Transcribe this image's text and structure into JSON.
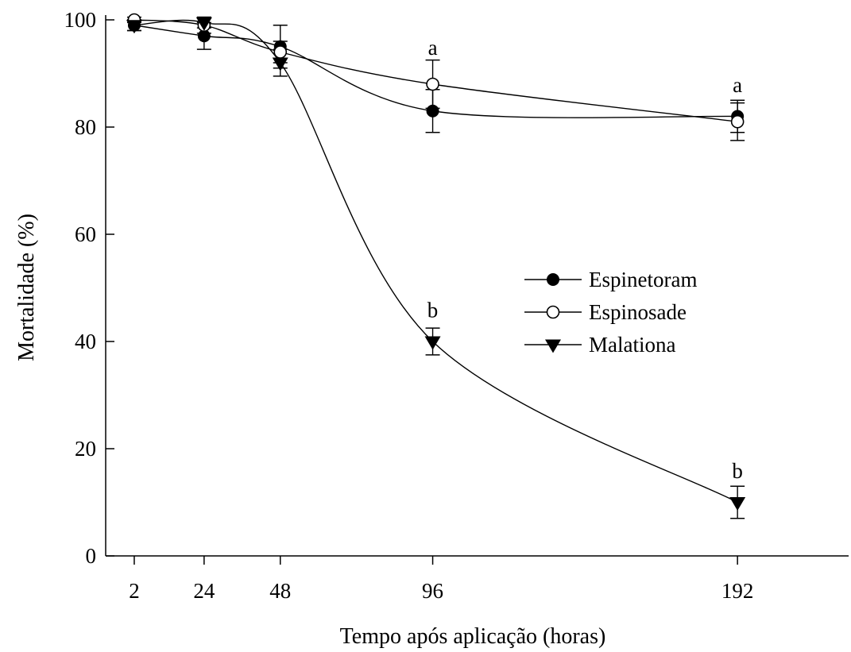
{
  "chart_data": {
    "type": "line",
    "title": "",
    "xlabel": "Tempo após aplicação (horas)",
    "ylabel": "Mortalidade (%)",
    "x": [
      2,
      24,
      48,
      96,
      192
    ],
    "x_ticks": [
      "2",
      "24",
      "48",
      "96",
      "192"
    ],
    "xlim": [
      -7,
      227
    ],
    "ylim": [
      0,
      100
    ],
    "y_ticks": [
      0,
      20,
      40,
      60,
      80,
      100
    ],
    "grid": false,
    "legend_position": "center-right",
    "series": [
      {
        "name": "Espinetoram",
        "marker": "filled-circle",
        "values": [
          99,
          97,
          95,
          83,
          82
        ],
        "errors": [
          1,
          2.5,
          4,
          4,
          3
        ]
      },
      {
        "name": "Espinosade",
        "marker": "open-circle",
        "values": [
          100,
          99,
          94,
          88,
          81
        ],
        "errors": [
          0.5,
          1.5,
          2,
          4.5,
          3.5
        ]
      },
      {
        "name": "Malationa",
        "marker": "filled-triangle-down",
        "values": [
          99,
          99.5,
          92,
          40,
          10
        ],
        "errors": [
          1,
          1,
          2.5,
          2.5,
          3
        ]
      }
    ],
    "annotations": [
      {
        "x": 96,
        "y": 93.5,
        "text": "a"
      },
      {
        "x": 192,
        "y": 86.5,
        "text": "a"
      },
      {
        "x": 96,
        "y": 44.5,
        "text": "b"
      },
      {
        "x": 192,
        "y": 14.5,
        "text": "b"
      }
    ]
  }
}
